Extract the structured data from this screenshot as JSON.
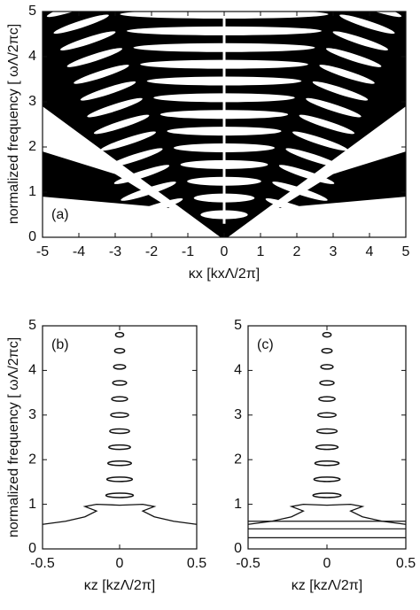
{
  "chart_data": [
    {
      "type": "band",
      "panel_label": "(a)",
      "xlabel": "κx [kxΛ/2π]",
      "ylabel": "normalized frequency [ ωΛ/2πc]",
      "xlim": [
        -5,
        5
      ],
      "ylim": [
        0,
        5
      ],
      "xticks": [
        -5,
        -4,
        -3,
        -2,
        -1,
        0,
        1,
        2,
        3,
        4,
        5
      ],
      "yticks": [
        0,
        1,
        2,
        3,
        4,
        5
      ]
    },
    {
      "type": "band",
      "panel_label": "(b)",
      "xlabel": "κz [kzΛ/2π]",
      "ylabel": "normalized frequency [ ωΛ/2πc]",
      "xlim": [
        -0.5,
        0.5
      ],
      "ylim": [
        0,
        5
      ],
      "xticks": [
        -0.5,
        0,
        0.5
      ],
      "yticks": [
        0,
        1,
        2,
        3,
        4,
        5
      ]
    },
    {
      "type": "band",
      "panel_label": "(c)",
      "xlabel": "κz [kzΛ/2π]",
      "xlim": [
        -0.5,
        0.5
      ],
      "ylim": [
        0,
        5
      ],
      "xticks": [
        -0.5,
        0,
        0.5
      ],
      "yticks": [
        0,
        1,
        2,
        3,
        4,
        5
      ]
    }
  ]
}
